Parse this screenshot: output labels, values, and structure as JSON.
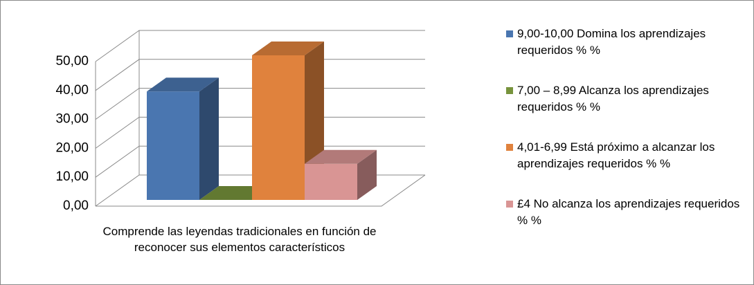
{
  "chart_data": {
    "type": "bar3d",
    "categories": [
      "Comprende las leyendas tradicionales en función de reconocer sus elementos característicos"
    ],
    "series": [
      {
        "name": "9,00-10,00 Domina los aprendizajes requeridos % %",
        "color": "#4a76b0",
        "values": [
          37.5
        ]
      },
      {
        "name": "7,00 – 8,99 Alcanza los aprendizajes requeridos % %",
        "color": "#77933c",
        "values": [
          0
        ]
      },
      {
        "name": "4,01-6,99 Está próximo a alcanzar los aprendizajes requeridos % %",
        "color": "#e0823d",
        "values": [
          50
        ]
      },
      {
        "name": "£4 No alcanza los aprendizajes requeridos % %",
        "color": "#d99594",
        "values": [
          12.5
        ]
      }
    ],
    "ylim": [
      0,
      50
    ],
    "yticks": [
      {
        "value": 0,
        "label": "0,00"
      },
      {
        "value": 10,
        "label": "10,00"
      },
      {
        "value": 20,
        "label": "20,00"
      },
      {
        "value": 30,
        "label": "30,00"
      },
      {
        "value": 40,
        "label": "40,00"
      },
      {
        "value": 50,
        "label": "50,00"
      }
    ],
    "grid": true,
    "legend": "right"
  }
}
